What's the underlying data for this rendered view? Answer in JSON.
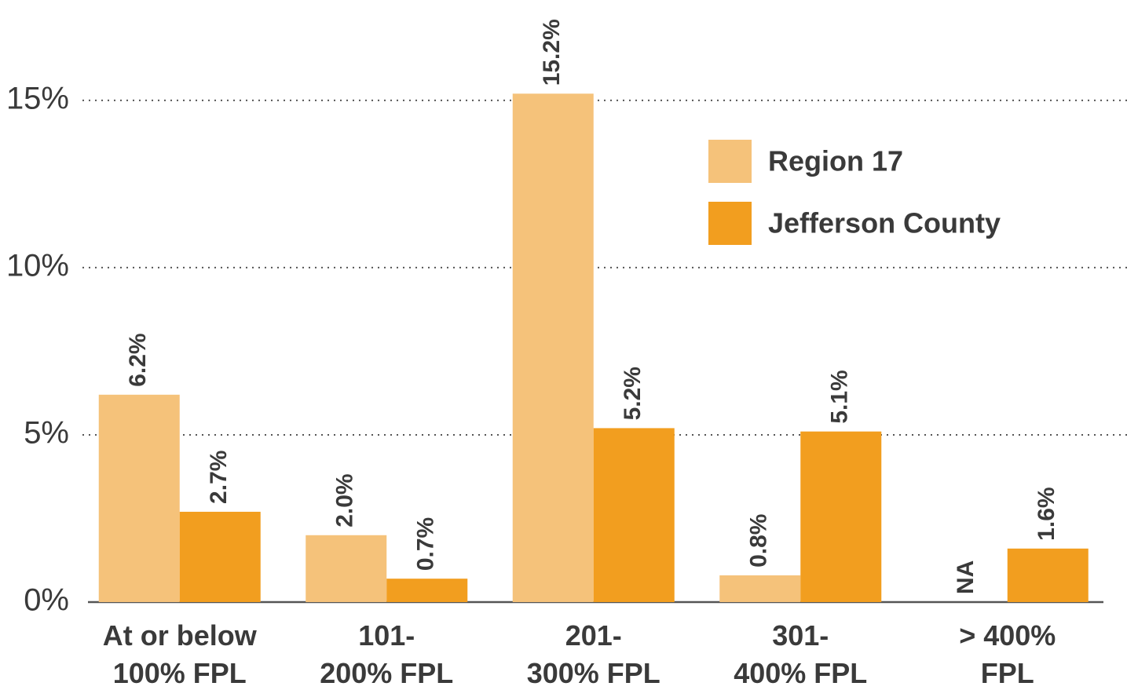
{
  "chart_data": {
    "type": "bar",
    "categories": [
      "At or below 100% FPL",
      "101-200% FPL",
      "201-300% FPL",
      "301-400% FPL",
      "> 400% FPL"
    ],
    "series": [
      {
        "name": "Region 17",
        "color": "#f5c27a",
        "values": [
          6.2,
          2.0,
          15.2,
          0.8,
          null
        ],
        "value_labels": [
          "6.2%",
          "2.0%",
          "15.2%",
          "0.8%",
          "NA"
        ]
      },
      {
        "name": "Jefferson County",
        "color": "#f29e1f",
        "values": [
          2.7,
          0.7,
          5.2,
          5.1,
          1.6
        ],
        "value_labels": [
          "2.7%",
          "0.7%",
          "5.2%",
          "5.1%",
          "1.6%"
        ]
      }
    ],
    "ylim": [
      0,
      18
    ],
    "yticks": [
      {
        "value": 0,
        "label": "0%"
      },
      {
        "value": 5,
        "label": "5%"
      },
      {
        "value": 10,
        "label": "10%"
      },
      {
        "value": 15,
        "label": "15%"
      }
    ],
    "grid": true
  }
}
